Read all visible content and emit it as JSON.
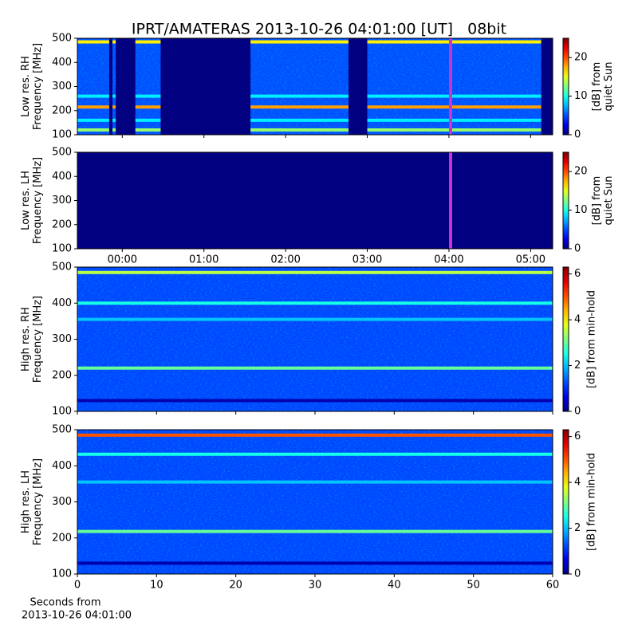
{
  "title": "IPRT/AMATERAS 2013-10-26 04:01:00 [UT]   08bit",
  "footer": [
    "Seconds from",
    "2013-10-26 04:01:00"
  ],
  "chart_data": [
    {
      "type": "heatmap",
      "ylabel": [
        "Low res. RH",
        "Frequency [MHz]"
      ],
      "xlim": [
        -0.55,
        5.27
      ],
      "xticks": [
        {
          "value": 0,
          "label": "00:00"
        },
        {
          "value": 1,
          "label": "01:00"
        },
        {
          "value": 2,
          "label": "02:00"
        },
        {
          "value": 3,
          "label": "03:00"
        },
        {
          "value": 4,
          "label": "04:00"
        },
        {
          "value": 5,
          "label": "05:00"
        }
      ],
      "show_xtick_labels": false,
      "ylim": [
        100,
        500
      ],
      "yticks": [
        100,
        200,
        300,
        400,
        500
      ],
      "colorbar": {
        "label": [
          "[dB] from",
          "quiet Sun"
        ],
        "lim": [
          0,
          25
        ],
        "ticks": [
          0,
          10,
          20
        ]
      },
      "background": 5,
      "bands": [
        {
          "freq": 485,
          "value": 16
        },
        {
          "freq": 215,
          "value": 18
        },
        {
          "freq": 120,
          "value": 13
        },
        {
          "freq": 260,
          "value": 9
        },
        {
          "freq": 160,
          "value": 9
        }
      ],
      "gaps": [
        [
          -0.16,
          -0.12
        ],
        [
          -0.08,
          0.16
        ],
        [
          0.47,
          1.57
        ],
        [
          2.77,
          3.0
        ],
        [
          5.13,
          5.27
        ]
      ],
      "marker": 4.02,
      "marker_color": "#cc33cc"
    },
    {
      "type": "heatmap",
      "ylabel": [
        "Low res. LH",
        "Frequency [MHz]"
      ],
      "xlim": [
        -0.55,
        5.27
      ],
      "xticks": [
        {
          "value": 0,
          "label": "00:00"
        },
        {
          "value": 1,
          "label": "01:00"
        },
        {
          "value": 2,
          "label": "02:00"
        },
        {
          "value": 3,
          "label": "03:00"
        },
        {
          "value": 4,
          "label": "04:00"
        },
        {
          "value": 5,
          "label": "05:00"
        }
      ],
      "show_xtick_labels": true,
      "ylim": [
        100,
        500
      ],
      "yticks": [
        100,
        200,
        300,
        400,
        500
      ],
      "colorbar": {
        "label": [
          "[dB] from",
          "quiet Sun"
        ],
        "lim": [
          0,
          25
        ],
        "ticks": [
          0,
          10,
          20
        ]
      },
      "background": 0,
      "bands": [],
      "gaps": [],
      "marker": 4.02,
      "marker_color": "#cc33cc"
    },
    {
      "type": "heatmap",
      "ylabel": [
        "High res. RH",
        "Frequency [MHz]"
      ],
      "xlim": [
        0,
        60
      ],
      "xticks": [
        0,
        10,
        20,
        30,
        40,
        50,
        60
      ],
      "show_xtick_labels": false,
      "ylim": [
        100,
        500
      ],
      "yticks": [
        100,
        200,
        300,
        400,
        500
      ],
      "colorbar": {
        "label": [
          "[dB] from min-hold"
        ],
        "lim": [
          0,
          6.3
        ],
        "ticks": [
          0,
          2,
          4,
          6
        ]
      },
      "background": 1.2,
      "bands": [
        {
          "freq": 485,
          "value": 3.5
        },
        {
          "freq": 220,
          "value": 3
        },
        {
          "freq": 400,
          "value": 2.5
        },
        {
          "freq": 355,
          "value": 2
        },
        {
          "freq": 130,
          "value": 0.3
        }
      ],
      "gaps": []
    },
    {
      "type": "heatmap",
      "ylabel": [
        "High res. LH",
        "Frequency [MHz]"
      ],
      "xlim": [
        0,
        60
      ],
      "xticks": [
        0,
        10,
        20,
        30,
        40,
        50,
        60
      ],
      "show_xtick_labels": true,
      "ylim": [
        100,
        500
      ],
      "yticks": [
        100,
        200,
        300,
        400,
        500
      ],
      "colorbar": {
        "label": [
          "[dB] from min-hold"
        ],
        "lim": [
          0,
          6.3
        ],
        "ticks": [
          0,
          2,
          4,
          6
        ]
      },
      "background": 1.2,
      "bands": [
        {
          "freq": 485,
          "value": 5
        },
        {
          "freq": 218,
          "value": 3
        },
        {
          "freq": 432,
          "value": 2.5
        },
        {
          "freq": 355,
          "value": 2
        },
        {
          "freq": 130,
          "value": 0.3
        }
      ],
      "gaps": []
    }
  ]
}
